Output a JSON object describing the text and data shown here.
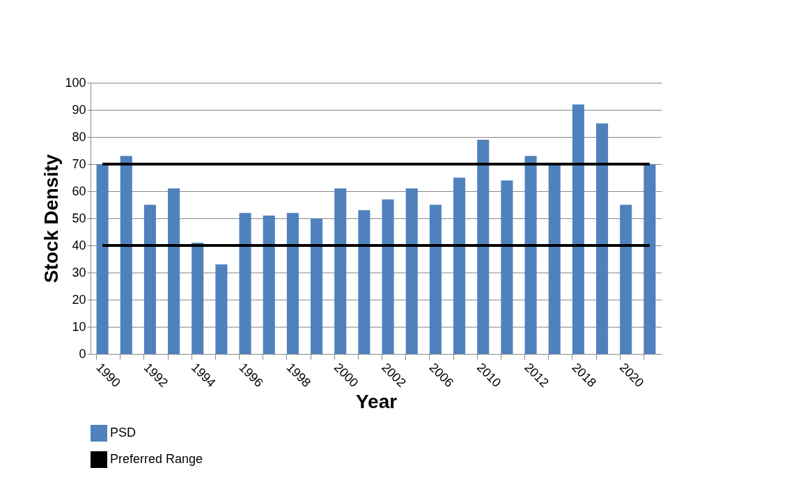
{
  "chart_data": {
    "type": "bar",
    "xlabel": "Year",
    "ylabel": "Stock Density",
    "categories": [
      "1990",
      null,
      "1992",
      null,
      "1994",
      null,
      "1996",
      null,
      "1998",
      null,
      "2000",
      null,
      "2002",
      null,
      "2006",
      null,
      "2010",
      null,
      "2012",
      null,
      "2018",
      null,
      "2020",
      null
    ],
    "series": [
      {
        "name": "PSD",
        "color": "#4f81bd",
        "values": [
          70,
          73,
          55,
          61,
          41,
          33,
          52,
          51,
          52,
          50,
          61,
          53,
          57,
          61,
          55,
          65,
          79,
          64,
          73,
          70,
          92,
          85,
          55,
          70
        ]
      },
      {
        "name": "Preferred Range",
        "type": "line",
        "color": "#000000",
        "values": [
          70,
          70,
          70,
          70,
          70,
          70,
          70,
          70,
          70,
          70,
          70,
          70,
          70,
          70,
          70,
          70,
          70,
          70,
          70,
          70,
          70,
          70,
          70,
          70
        ]
      },
      {
        "type": "line",
        "color": "#000000",
        "values": [
          40,
          40,
          40,
          40,
          40,
          40,
          40,
          40,
          40,
          40,
          40,
          40,
          40,
          40,
          40,
          40,
          40,
          40,
          40,
          40,
          40,
          40,
          40,
          40
        ]
      }
    ],
    "ylim": [
      0,
      100
    ],
    "yticks": [
      0,
      10,
      20,
      30,
      40,
      50,
      60,
      70,
      80,
      90,
      100
    ],
    "grid": "y",
    "legend": "bottom"
  }
}
